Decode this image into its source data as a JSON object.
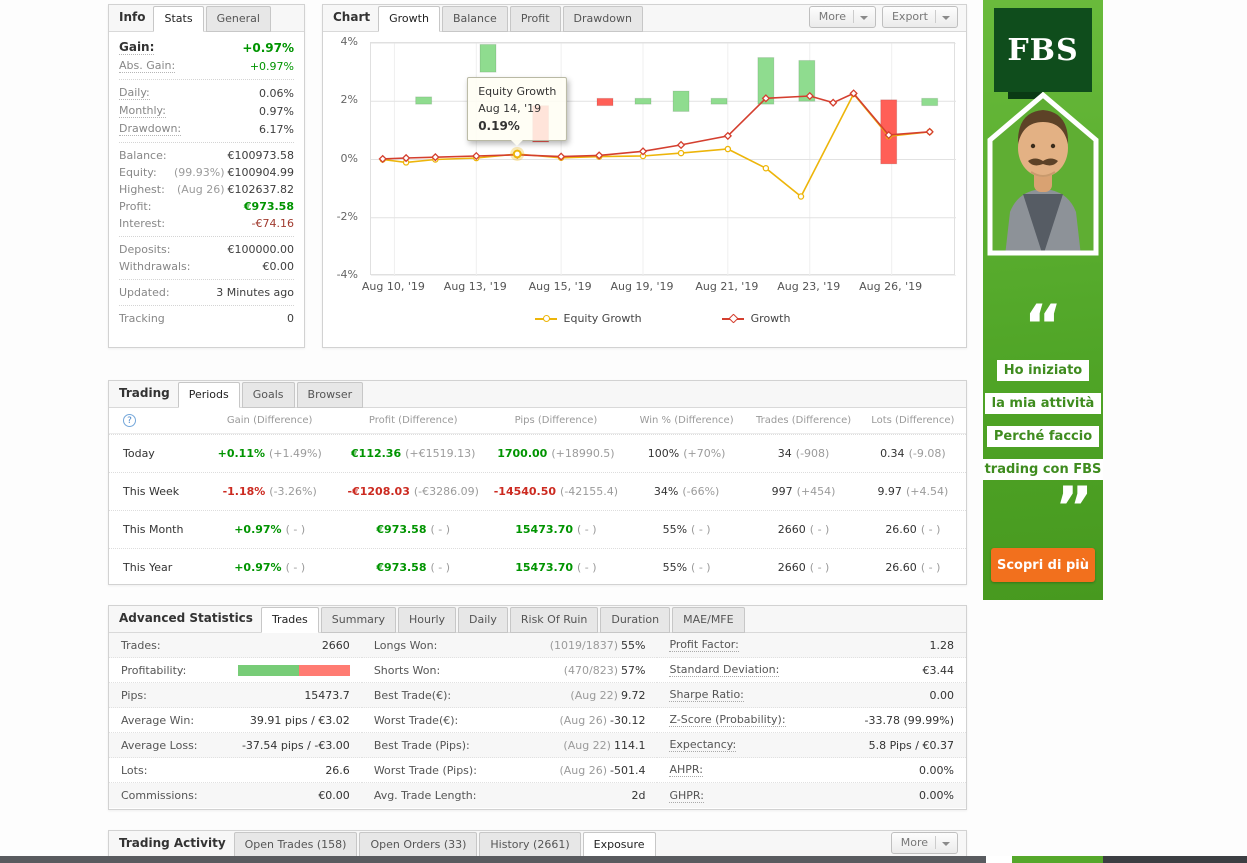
{
  "colors": {
    "positive_green": "#009400",
    "negative_red": "#cc2a20",
    "chart_equity_yellow": "#edb50a",
    "chart_growth_red": "#d43f2f",
    "bar_green": "#8fdc8f",
    "bar_red": "#ff5f57",
    "ad_green": "#56a82c",
    "cta_orange": "#f2701d"
  },
  "info": {
    "title": "Info",
    "tabs": [
      "Stats",
      "General"
    ],
    "rows": [
      {
        "label": "Gain:",
        "value": "+0.97%"
      },
      {
        "label": "Abs. Gain:",
        "value": "+0.97%"
      },
      {
        "label": "Daily:",
        "value": "0.06%"
      },
      {
        "label": "Monthly:",
        "value": "0.97%"
      },
      {
        "label": "Drawdown:",
        "value": "6.17%"
      },
      {
        "label": "Balance:",
        "value": "€100973.58"
      },
      {
        "label": "Equity:",
        "muted": "(99.93%)",
        "value": "€100904.99"
      },
      {
        "label": "Highest:",
        "muted": "(Aug 26)",
        "value": "€102637.82"
      },
      {
        "label": "Profit:",
        "value": "€973.58"
      },
      {
        "label": "Interest:",
        "value": "-€74.16"
      },
      {
        "label": "Deposits:",
        "value": "€100000.00"
      },
      {
        "label": "Withdrawals:",
        "value": "€0.00"
      },
      {
        "label": "Updated:",
        "value": "3 Minutes ago"
      },
      {
        "label": "Tracking",
        "value": "0"
      }
    ]
  },
  "chart": {
    "title": "Chart",
    "tabs": [
      "Growth",
      "Balance",
      "Profit",
      "Drawdown"
    ],
    "more_label": "More",
    "export_label": "Export",
    "legend": [
      "Equity Growth",
      "Growth"
    ],
    "tooltip": {
      "title": "Equity Growth",
      "date": "Aug 14, '19",
      "value": "0.19%"
    }
  },
  "chart_data": {
    "type": "line",
    "title": "Growth",
    "ylim": [
      -4,
      4
    ],
    "yticks": [
      {
        "v": 4,
        "label": "4%"
      },
      {
        "v": 2,
        "label": "2%"
      },
      {
        "v": 0,
        "label": "0%"
      },
      {
        "v": -2,
        "label": "-2%"
      },
      {
        "v": -4,
        "label": "-4%"
      }
    ],
    "xticks": [
      {
        "pos": 4,
        "label": "Aug 10, '19"
      },
      {
        "pos": 18,
        "label": "Aug 13, '19"
      },
      {
        "pos": 32.5,
        "label": "Aug 15, '19"
      },
      {
        "pos": 46.5,
        "label": "Aug 19, '19"
      },
      {
        "pos": 61,
        "label": "Aug 21, '19"
      },
      {
        "pos": 75,
        "label": "Aug 23, '19"
      },
      {
        "pos": 89,
        "label": "Aug 26, '19"
      }
    ],
    "series": [
      {
        "name": "Equity Growth",
        "color": "#edb50a",
        "marker": "circle",
        "points": [
          [
            2,
            0
          ],
          [
            6,
            -0.1
          ],
          [
            11,
            0
          ],
          [
            18,
            0.05
          ],
          [
            25,
            0.19
          ],
          [
            32.5,
            0.06
          ],
          [
            39,
            0.1
          ],
          [
            46.5,
            0.12
          ],
          [
            53,
            0.22
          ],
          [
            61,
            0.36
          ],
          [
            67.5,
            -0.3
          ],
          [
            73.5,
            -1.27
          ],
          [
            82.5,
            2.25
          ],
          [
            88.5,
            0.8
          ],
          [
            95.5,
            0.95
          ]
        ]
      },
      {
        "name": "Growth",
        "color": "#d43f2f",
        "marker": "diamond",
        "points": [
          [
            2,
            0.02
          ],
          [
            6,
            0.05
          ],
          [
            11,
            0.08
          ],
          [
            18,
            0.12
          ],
          [
            25,
            0.16
          ],
          [
            32.5,
            0.1
          ],
          [
            39,
            0.14
          ],
          [
            46.5,
            0.28
          ],
          [
            53,
            0.5
          ],
          [
            61,
            0.81
          ],
          [
            67.5,
            2.1
          ],
          [
            75,
            2.18
          ],
          [
            79,
            1.95
          ],
          [
            82.5,
            2.27
          ],
          [
            88.5,
            0.84
          ],
          [
            95.5,
            0.95
          ]
        ]
      }
    ],
    "bars": [
      {
        "pos": 9,
        "from": 1.9,
        "to": 2.15,
        "color": "green"
      },
      {
        "pos": 20,
        "from": 3.0,
        "to": 3.95,
        "color": "green"
      },
      {
        "pos": 29,
        "from": 0.6,
        "to": 1.85,
        "color": "red"
      },
      {
        "pos": 40,
        "from": 1.85,
        "to": 2.1,
        "color": "red"
      },
      {
        "pos": 46.5,
        "from": 1.9,
        "to": 2.1,
        "color": "green"
      },
      {
        "pos": 53,
        "from": 1.65,
        "to": 2.35,
        "color": "green"
      },
      {
        "pos": 59.5,
        "from": 1.9,
        "to": 2.1,
        "color": "green"
      },
      {
        "pos": 67.5,
        "from": 1.9,
        "to": 3.5,
        "color": "green"
      },
      {
        "pos": 74.5,
        "from": 2.0,
        "to": 3.4,
        "color": "green"
      },
      {
        "pos": 88.5,
        "from": -0.15,
        "to": 2.05,
        "color": "red"
      },
      {
        "pos": 95.5,
        "from": 1.85,
        "to": 2.1,
        "color": "green"
      }
    ],
    "bar_colors": {
      "green": "#8fdc8f",
      "red": "#ff5f57"
    },
    "highlight": {
      "x": 25,
      "y": 0.19
    },
    "legend_position": "bottom",
    "grid": true
  },
  "trading": {
    "title": "Trading",
    "tabs": [
      "Periods",
      "Goals",
      "Browser"
    ],
    "help_icon": "?",
    "columns": [
      "Gain (Difference)",
      "Profit (Difference)",
      "Pips (Difference)",
      "Win % (Difference)",
      "Trades (Difference)",
      "Lots (Difference)"
    ],
    "rows": [
      {
        "label": "Today",
        "cells": [
          {
            "main": "+0.11%",
            "diff": "(+1.49%)",
            "tone": "green"
          },
          {
            "main": "€112.36",
            "diff": "(+€1519.13)",
            "tone": "green"
          },
          {
            "main": "1700.00",
            "diff": "(+18990.5)",
            "tone": "green"
          },
          {
            "main": "100%",
            "diff": "(+70%)",
            "tone": "plain"
          },
          {
            "main": "34",
            "diff": "(-908)",
            "tone": "plain"
          },
          {
            "main": "0.34",
            "diff": "(-9.08)",
            "tone": "plain"
          }
        ]
      },
      {
        "label": "This Week",
        "cells": [
          {
            "main": "-1.18%",
            "diff": "(-3.26%)",
            "tone": "red"
          },
          {
            "main": "-€1208.03",
            "diff": "(-€3286.09)",
            "tone": "red"
          },
          {
            "main": "-14540.50",
            "diff": "(-42155.4)",
            "tone": "red"
          },
          {
            "main": "34%",
            "diff": "(-66%)",
            "tone": "plain"
          },
          {
            "main": "997",
            "diff": "(+454)",
            "tone": "plain"
          },
          {
            "main": "9.97",
            "diff": "(+4.54)",
            "tone": "plain"
          }
        ]
      },
      {
        "label": "This Month",
        "cells": [
          {
            "main": "+0.97%",
            "diff": "( - )",
            "tone": "green"
          },
          {
            "main": "€973.58",
            "diff": "( - )",
            "tone": "green"
          },
          {
            "main": "15473.70",
            "diff": "( - )",
            "tone": "green"
          },
          {
            "main": "55%",
            "diff": "( - )",
            "tone": "plain"
          },
          {
            "main": "2660",
            "diff": "( - )",
            "tone": "plain"
          },
          {
            "main": "26.60",
            "diff": "( - )",
            "tone": "plain"
          }
        ]
      },
      {
        "label": "This Year",
        "cells": [
          {
            "main": "+0.97%",
            "diff": "( - )",
            "tone": "green"
          },
          {
            "main": "€973.58",
            "diff": "( - )",
            "tone": "green"
          },
          {
            "main": "15473.70",
            "diff": "( - )",
            "tone": "green"
          },
          {
            "main": "55%",
            "diff": "( - )",
            "tone": "plain"
          },
          {
            "main": "2660",
            "diff": "( - )",
            "tone": "plain"
          },
          {
            "main": "26.60",
            "diff": "( - )",
            "tone": "plain"
          }
        ]
      }
    ]
  },
  "advanced": {
    "title": "Advanced Statistics",
    "tabs": [
      "Trades",
      "Summary",
      "Hourly",
      "Daily",
      "Risk Of Ruin",
      "Duration",
      "MAE/MFE"
    ],
    "profitability": {
      "green_pct": 55,
      "red_pct": 45
    },
    "rows": [
      {
        "c1": {
          "label": "Trades:",
          "value": "2660"
        },
        "c2": {
          "label": "Longs Won:",
          "muted": "(1019/1837)",
          "value": "55%"
        },
        "c3": {
          "label": "Profit Factor:",
          "value": "1.28"
        }
      },
      {
        "c1": {
          "label": "Profitability:",
          "value": ""
        },
        "c2": {
          "label": "Shorts Won:",
          "muted": "(470/823)",
          "value": "57%"
        },
        "c3": {
          "label": "Standard Deviation:",
          "value": "€3.44"
        }
      },
      {
        "c1": {
          "label": "Pips:",
          "value": "15473.7"
        },
        "c2": {
          "label": "Best Trade(€):",
          "muted": "(Aug 22)",
          "value": "9.72"
        },
        "c3": {
          "label": "Sharpe Ratio:",
          "value": "0.00"
        }
      },
      {
        "c1": {
          "label": "Average Win:",
          "value": "39.91 pips / €3.02"
        },
        "c2": {
          "label": "Worst Trade(€):",
          "muted": "(Aug 26)",
          "value": "-30.12"
        },
        "c3": {
          "label": "Z-Score (Probability):",
          "value": "-33.78 (99.99%)"
        }
      },
      {
        "c1": {
          "label": "Average Loss:",
          "value": "-37.54 pips / -€3.00"
        },
        "c2": {
          "label": "Best Trade (Pips):",
          "muted": "(Aug 22)",
          "value": "114.1"
        },
        "c3": {
          "label": "Expectancy:",
          "value": "5.8 Pips / €0.37"
        }
      },
      {
        "c1": {
          "label": "Lots:",
          "value": "26.6"
        },
        "c2": {
          "label": "Worst Trade (Pips):",
          "muted": "(Aug 26)",
          "value": "-501.4"
        },
        "c3": {
          "label": "AHPR:",
          "value": "0.00%"
        }
      },
      {
        "c1": {
          "label": "Commissions:",
          "value": "€0.00"
        },
        "c2": {
          "label": "Avg. Trade Length:",
          "muted": "",
          "value": "2d"
        },
        "c3": {
          "label": "GHPR:",
          "value": "0.00%"
        }
      }
    ]
  },
  "activity": {
    "title": "Trading Activity",
    "tabs": [
      "Open Trades (158)",
      "Open Orders (33)",
      "History (2661)",
      "Exposure"
    ],
    "more_label": "More"
  },
  "ad": {
    "brand": "FBS",
    "quote_open": "“",
    "quote_close": "”",
    "lines": [
      "Ho iniziato",
      "la mia attività",
      "Perché faccio",
      "trading con FBS"
    ],
    "cta": "Scopri di più"
  }
}
